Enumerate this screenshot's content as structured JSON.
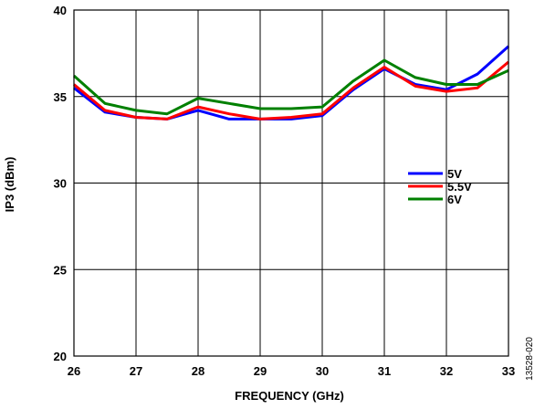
{
  "figure_id": "13528-020",
  "colors": {
    "5V": "#0000ff",
    "5.5V": "#ff0000",
    "6V": "#008000",
    "grid": "#000000"
  },
  "chart_data": {
    "type": "line",
    "title": "",
    "xlabel": "FREQUENCY (GHz)",
    "ylabel": "IP3 (dBm)",
    "xlim": [
      26,
      33
    ],
    "ylim": [
      20,
      40
    ],
    "x_ticks": [
      "26",
      "27",
      "28",
      "29",
      "30",
      "31",
      "32",
      "33"
    ],
    "y_ticks": [
      "20",
      "25",
      "30",
      "35",
      "40"
    ],
    "grid": true,
    "legend_position": "right-center",
    "x": [
      26,
      26.5,
      27,
      27.5,
      28,
      28.5,
      29,
      29.5,
      30,
      30.5,
      31,
      31.5,
      32,
      32.5,
      33
    ],
    "series": [
      {
        "name": "5V",
        "values": [
          35.5,
          34.1,
          33.8,
          33.7,
          34.2,
          33.7,
          33.7,
          33.7,
          33.9,
          35.4,
          36.6,
          35.7,
          35.4,
          36.3,
          37.9
        ]
      },
      {
        "name": "5.5V",
        "values": [
          35.7,
          34.2,
          33.8,
          33.7,
          34.4,
          34.0,
          33.7,
          33.8,
          34.0,
          35.5,
          36.7,
          35.6,
          35.3,
          35.5,
          37.0
        ]
      },
      {
        "name": "6V",
        "values": [
          36.2,
          34.6,
          34.2,
          34.0,
          34.9,
          34.6,
          34.3,
          34.3,
          34.4,
          35.9,
          37.1,
          36.1,
          35.7,
          35.7,
          36.5
        ]
      }
    ]
  }
}
